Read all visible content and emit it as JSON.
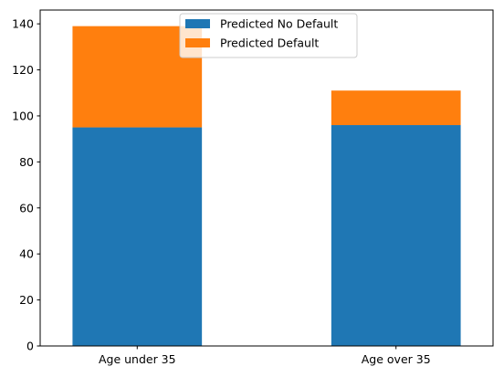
{
  "chart_data": {
    "type": "bar",
    "stacked": true,
    "categories": [
      "Age under 35",
      "Age over 35"
    ],
    "series": [
      {
        "name": "Predicted No Default",
        "values": [
          95,
          96
        ],
        "color": "#1f77b4"
      },
      {
        "name": "Predicted Default",
        "values": [
          44,
          15
        ],
        "color": "#ff7f0e"
      }
    ],
    "title": "",
    "xlabel": "",
    "ylabel": "",
    "ylim": [
      0,
      146
    ],
    "yticks": [
      0,
      20,
      40,
      60,
      80,
      100,
      120,
      140
    ],
    "grid": false,
    "legend": "upper-center"
  }
}
